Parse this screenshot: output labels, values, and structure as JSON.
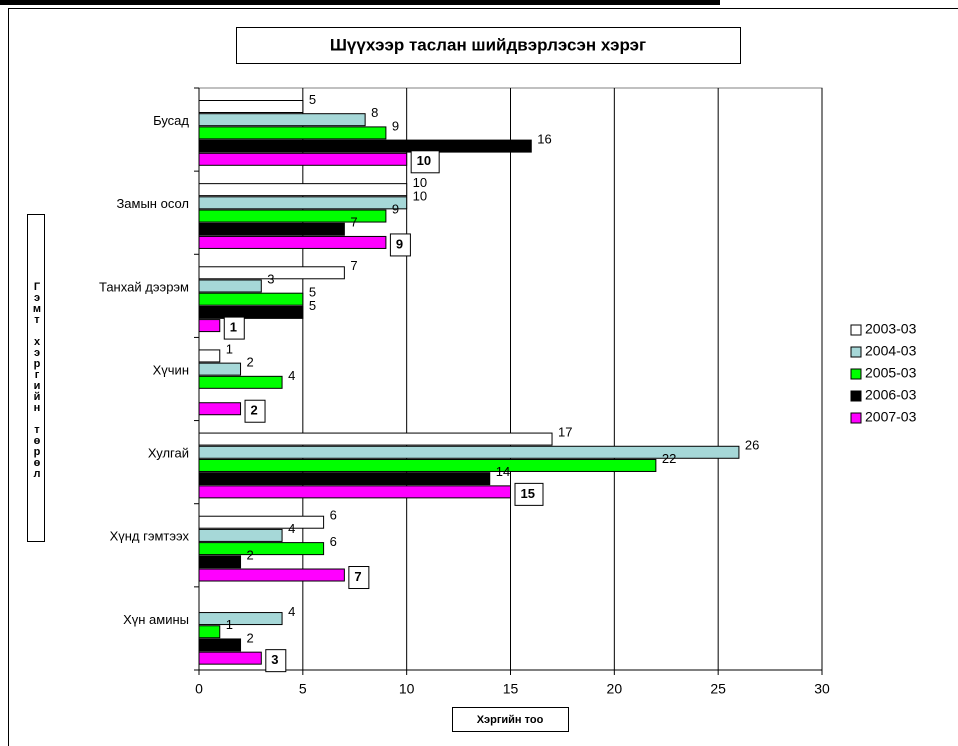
{
  "chart_data": {
    "type": "bar",
    "orientation": "horizontal",
    "title": "Шүүхээр таслан шийдвэрлэсэн хэрэг",
    "x_label": "Хэргийн тоо",
    "y_label": "Гэмт хэргийн төрөл",
    "categories": [
      "Бусад",
      "Замын осол",
      "Танхай дээрэм",
      "Хүчин",
      "Хулгай",
      "Хүнд гэмтээх",
      "Хүн амины"
    ],
    "series": [
      {
        "name": "2003-03",
        "color": "#ffffff",
        "values": [
          5,
          10,
          7,
          1,
          17,
          6,
          null
        ]
      },
      {
        "name": "2004-03",
        "color": "#a6d8d8",
        "values": [
          8,
          10,
          3,
          2,
          26,
          4,
          4
        ]
      },
      {
        "name": "2005-03",
        "color": "#00ff00",
        "values": [
          9,
          9,
          5,
          4,
          22,
          6,
          1
        ]
      },
      {
        "name": "2006-03",
        "color": "#000000",
        "values": [
          16,
          7,
          5,
          null,
          14,
          2,
          2
        ]
      },
      {
        "name": "2007-03",
        "color": "#ff00ff",
        "values": [
          10,
          9,
          1,
          2,
          15,
          7,
          3
        ]
      }
    ],
    "xlim": [
      0,
      30
    ],
    "xticks": [
      0,
      5,
      10,
      15,
      20,
      25,
      30
    ],
    "grid": true,
    "legend": "right"
  }
}
